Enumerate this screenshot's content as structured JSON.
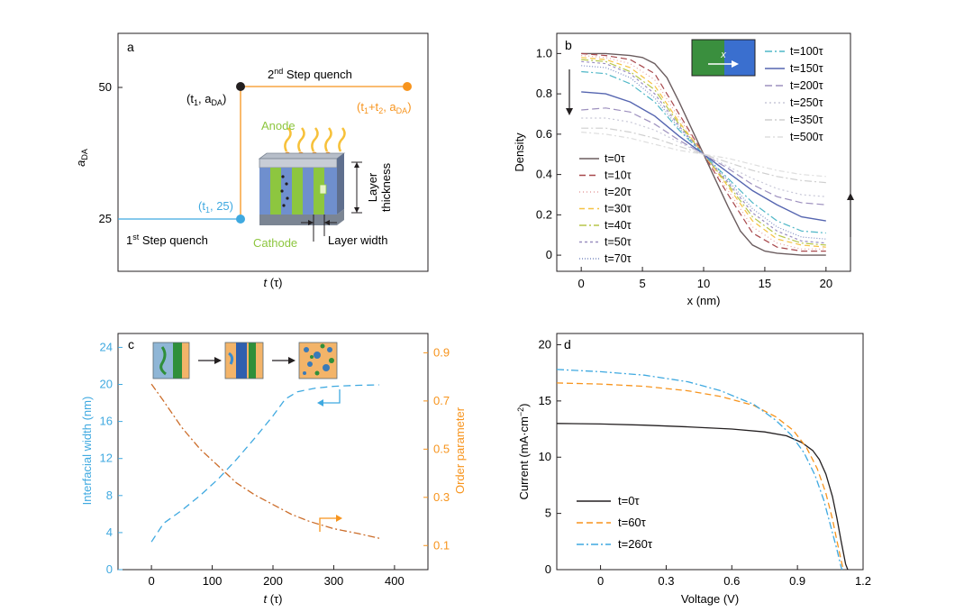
{
  "colors": {
    "blue": "#3fa9e0",
    "orange": "#f7941d",
    "olive": "#cc6d2a",
    "dark": "#231f20",
    "purple": "#5565b0",
    "red": "#a8484c",
    "anode_green": "#8dc63f",
    "layer_blue": "#6f8fce"
  },
  "panel_a": {
    "label": "a",
    "ylabel": "a",
    "ylabel_sub": "DA",
    "xlabel_main": "t",
    "xlabel_unit": "(τ)",
    "yticks": [
      "50",
      "25"
    ],
    "step1": "1",
    "step1_sup": "st",
    "step1_rest": " Step quench",
    "step2": "2",
    "step2_sup": "nd",
    "step2_rest": " Step quench",
    "pt1_label": "(t",
    "pt1_sub": "1",
    "pt1_rest": ", 25)",
    "pt2_a": "(t",
    "pt2_sub1": "1",
    "pt2_b": ", a",
    "pt2_sub2": "DA",
    "pt2_c": ")",
    "pt3_a": "(t",
    "pt3_sub1": "1",
    "pt3_b": "+t",
    "pt3_sub2": "2",
    "pt3_c": ", a",
    "pt3_sub3": "DA",
    "pt3_d": ")",
    "anode": "Anode",
    "cathode": "Cathode",
    "layer_thickness_1": "Layer",
    "layer_thickness_2": "thickness",
    "layer_width": "Layer width"
  },
  "chart_data": [
    {
      "panel": "b",
      "type": "line",
      "xlabel": "x (nm)",
      "ylabel": "Density",
      "xlim": [
        -2,
        22
      ],
      "ylim": [
        -0.08,
        1.1
      ],
      "xticks": [
        0,
        5,
        10,
        15,
        20
      ],
      "yticks": [
        0,
        0.2,
        0.4,
        0.6,
        0.8,
        1.0
      ],
      "inset_label": "x",
      "series": [
        {
          "name": "t=0τ",
          "color": "#6b5d5f",
          "dash": "",
          "values": [
            [
              0,
              1.0
            ],
            [
              2,
              1.0
            ],
            [
              4,
              0.99
            ],
            [
              5,
              0.98
            ],
            [
              6,
              0.95
            ],
            [
              7,
              0.88
            ],
            [
              8,
              0.76
            ],
            [
              9,
              0.63
            ],
            [
              10,
              0.5
            ],
            [
              11,
              0.37
            ],
            [
              12,
              0.24
            ],
            [
              13,
              0.12
            ],
            [
              14,
              0.05
            ],
            [
              15,
              0.02
            ],
            [
              16,
              0.01
            ],
            [
              18,
              0.0
            ],
            [
              20,
              0.0
            ]
          ]
        },
        {
          "name": "t=10τ",
          "color": "#a8484c",
          "dash": "7,4",
          "values": [
            [
              0,
              1.0
            ],
            [
              2,
              0.99
            ],
            [
              4,
              0.97
            ],
            [
              6,
              0.9
            ],
            [
              8,
              0.7
            ],
            [
              10,
              0.5
            ],
            [
              12,
              0.3
            ],
            [
              14,
              0.11
            ],
            [
              16,
              0.04
            ],
            [
              18,
              0.02
            ],
            [
              20,
              0.02
            ]
          ]
        },
        {
          "name": "t=20τ",
          "color": "#e6a0a0",
          "dash": "1,3",
          "values": [
            [
              0,
              0.99
            ],
            [
              2,
              0.98
            ],
            [
              4,
              0.95
            ],
            [
              6,
              0.87
            ],
            [
              8,
              0.68
            ],
            [
              10,
              0.5
            ],
            [
              12,
              0.32
            ],
            [
              14,
              0.14
            ],
            [
              16,
              0.06
            ],
            [
              18,
              0.03
            ],
            [
              20,
              0.03
            ]
          ]
        },
        {
          "name": "t=30τ",
          "color": "#f5c242",
          "dash": "6,4",
          "values": [
            [
              0,
              0.98
            ],
            [
              2,
              0.97
            ],
            [
              4,
              0.93
            ],
            [
              6,
              0.84
            ],
            [
              8,
              0.66
            ],
            [
              10,
              0.5
            ],
            [
              12,
              0.34
            ],
            [
              14,
              0.17
            ],
            [
              16,
              0.08
            ],
            [
              18,
              0.05
            ],
            [
              20,
              0.04
            ]
          ]
        },
        {
          "name": "t=40τ",
          "color": "#b7c64a",
          "dash": "8,3,2,3",
          "values": [
            [
              0,
              0.97
            ],
            [
              2,
              0.96
            ],
            [
              4,
              0.91
            ],
            [
              6,
              0.82
            ],
            [
              8,
              0.65
            ],
            [
              10,
              0.5
            ],
            [
              12,
              0.35
            ],
            [
              14,
              0.19
            ],
            [
              16,
              0.1
            ],
            [
              18,
              0.06
            ],
            [
              20,
              0.05
            ]
          ]
        },
        {
          "name": "t=50τ",
          "color": "#9a8fc0",
          "dash": "3,3",
          "values": [
            [
              0,
              0.96
            ],
            [
              2,
              0.95
            ],
            [
              4,
              0.9
            ],
            [
              6,
              0.8
            ],
            [
              8,
              0.64
            ],
            [
              10,
              0.5
            ],
            [
              12,
              0.36
            ],
            [
              14,
              0.21
            ],
            [
              16,
              0.12
            ],
            [
              18,
              0.07
            ],
            [
              20,
              0.06
            ]
          ]
        },
        {
          "name": "t=70τ",
          "color": "#7f8fc4",
          "dash": "1,2",
          "values": [
            [
              0,
              0.94
            ],
            [
              2,
              0.93
            ],
            [
              4,
              0.88
            ],
            [
              6,
              0.78
            ],
            [
              8,
              0.63
            ],
            [
              10,
              0.5
            ],
            [
              12,
              0.37
            ],
            [
              14,
              0.23
            ],
            [
              16,
              0.14
            ],
            [
              18,
              0.09
            ],
            [
              20,
              0.08
            ]
          ]
        },
        {
          "name": "t=100τ",
          "color": "#4fb7c7",
          "dash": "8,3,2,3",
          "values": [
            [
              0,
              0.91
            ],
            [
              2,
              0.9
            ],
            [
              4,
              0.85
            ],
            [
              6,
              0.76
            ],
            [
              8,
              0.62
            ],
            [
              10,
              0.5
            ],
            [
              12,
              0.38
            ],
            [
              14,
              0.26
            ],
            [
              16,
              0.17
            ],
            [
              18,
              0.12
            ],
            [
              20,
              0.11
            ]
          ]
        },
        {
          "name": "t=150τ",
          "color": "#5565b0",
          "dash": "",
          "values": [
            [
              0,
              0.81
            ],
            [
              2,
              0.8
            ],
            [
              4,
              0.76
            ],
            [
              6,
              0.69
            ],
            [
              8,
              0.59
            ],
            [
              10,
              0.5
            ],
            [
              12,
              0.41
            ],
            [
              14,
              0.32
            ],
            [
              16,
              0.25
            ],
            [
              18,
              0.19
            ],
            [
              20,
              0.17
            ]
          ]
        },
        {
          "name": "t=200τ",
          "color": "#9e91bf",
          "dash": "8,4",
          "values": [
            [
              0,
              0.72
            ],
            [
              2,
              0.73
            ],
            [
              4,
              0.71
            ],
            [
              6,
              0.65
            ],
            [
              8,
              0.57
            ],
            [
              10,
              0.5
            ],
            [
              12,
              0.43
            ],
            [
              14,
              0.35
            ],
            [
              16,
              0.29
            ],
            [
              18,
              0.26
            ],
            [
              20,
              0.25
            ]
          ]
        },
        {
          "name": "t=250τ",
          "color": "#c9c9d8",
          "dash": "2,3",
          "values": [
            [
              0,
              0.68
            ],
            [
              2,
              0.68
            ],
            [
              4,
              0.66
            ],
            [
              6,
              0.62
            ],
            [
              8,
              0.56
            ],
            [
              10,
              0.5
            ],
            [
              12,
              0.44
            ],
            [
              14,
              0.38
            ],
            [
              16,
              0.33
            ],
            [
              18,
              0.3
            ],
            [
              20,
              0.29
            ]
          ]
        },
        {
          "name": "t=350τ",
          "color": "#cfcfcf",
          "dash": "8,3,2,3",
          "values": [
            [
              0,
              0.63
            ],
            [
              2,
              0.63
            ],
            [
              4,
              0.61
            ],
            [
              6,
              0.58
            ],
            [
              8,
              0.54
            ],
            [
              10,
              0.5
            ],
            [
              12,
              0.46
            ],
            [
              14,
              0.42
            ],
            [
              16,
              0.39
            ],
            [
              18,
              0.37
            ],
            [
              20,
              0.36
            ]
          ]
        },
        {
          "name": "t=500τ",
          "color": "#dedede",
          "dash": "6,3,2,3",
          "values": [
            [
              0,
              0.61
            ],
            [
              2,
              0.6
            ],
            [
              4,
              0.58
            ],
            [
              6,
              0.55
            ],
            [
              8,
              0.52
            ],
            [
              10,
              0.5
            ],
            [
              12,
              0.48
            ],
            [
              14,
              0.45
            ],
            [
              16,
              0.42
            ],
            [
              18,
              0.4
            ],
            [
              20,
              0.39
            ]
          ]
        }
      ]
    },
    {
      "panel": "c",
      "type": "line",
      "xlabel_main": "t",
      "xlabel_unit": "(τ)",
      "ylabel": "Interfacial width (nm)",
      "y2label": "Order parameter",
      "xlim": [
        -55,
        455
      ],
      "ylim": [
        0,
        25.5
      ],
      "y2lim": [
        0.0,
        0.98
      ],
      "xticks": [
        0,
        100,
        200,
        300,
        400
      ],
      "yticks": [
        0,
        4,
        8,
        12,
        16,
        20,
        24
      ],
      "y2ticks": [
        0.1,
        0.3,
        0.5,
        0.7,
        0.9
      ],
      "series": [
        {
          "name": "Interfacial width",
          "axis": "left",
          "color": "#3fa9e0",
          "dash": "8,5",
          "values": [
            [
              0,
              3.0
            ],
            [
              20,
              5.0
            ],
            [
              50,
              6.4
            ],
            [
              80,
              8.0
            ],
            [
              110,
              9.8
            ],
            [
              140,
              11.9
            ],
            [
              170,
              14.2
            ],
            [
              200,
              16.6
            ],
            [
              220,
              18.4
            ],
            [
              240,
              19.2
            ],
            [
              270,
              19.6
            ],
            [
              300,
              19.8
            ],
            [
              340,
              19.9
            ],
            [
              375,
              19.95
            ]
          ]
        },
        {
          "name": "Order parameter",
          "axis": "right",
          "color": "#cc6d2a",
          "dash": "8,3,2,3",
          "values": [
            [
              0,
              0.77
            ],
            [
              20,
              0.7
            ],
            [
              50,
              0.59
            ],
            [
              80,
              0.5
            ],
            [
              110,
              0.43
            ],
            [
              140,
              0.36
            ],
            [
              170,
              0.31
            ],
            [
              200,
              0.27
            ],
            [
              230,
              0.23
            ],
            [
              260,
              0.2
            ],
            [
              300,
              0.17
            ],
            [
              340,
              0.15
            ],
            [
              375,
              0.13
            ]
          ]
        }
      ]
    },
    {
      "panel": "d",
      "type": "line",
      "xlabel": "Voltage (V)",
      "ylabel_main": "Current (mA·cm",
      "ylabel_sup": "−2",
      "ylabel_end": ")",
      "xlim": [
        -0.2,
        1.2
      ],
      "ylim": [
        0,
        21
      ],
      "xticks": [
        0,
        0.3,
        0.6,
        0.9,
        1.2
      ],
      "xtick_labels": [
        "0",
        "0.3",
        "0.6",
        "0.9",
        "1.2"
      ],
      "yticks": [
        0,
        5,
        10,
        15,
        20
      ],
      "series": [
        {
          "name": "t=0τ",
          "color": "#231f20",
          "dash": "",
          "values": [
            [
              -0.2,
              13.0
            ],
            [
              0.0,
              12.95
            ],
            [
              0.2,
              12.85
            ],
            [
              0.4,
              12.7
            ],
            [
              0.6,
              12.5
            ],
            [
              0.75,
              12.25
            ],
            [
              0.85,
              11.9
            ],
            [
              0.92,
              11.3
            ],
            [
              0.97,
              10.6
            ],
            [
              1.0,
              9.8
            ],
            [
              1.03,
              8.5
            ],
            [
              1.06,
              6.5
            ],
            [
              1.08,
              4.6
            ],
            [
              1.1,
              2.5
            ],
            [
              1.12,
              0.5
            ],
            [
              1.13,
              0.0
            ]
          ]
        },
        {
          "name": "t=60τ",
          "color": "#f7941d",
          "dash": "7,4",
          "values": [
            [
              -0.2,
              16.6
            ],
            [
              0.0,
              16.5
            ],
            [
              0.2,
              16.3
            ],
            [
              0.4,
              15.9
            ],
            [
              0.55,
              15.4
            ],
            [
              0.7,
              14.6
            ],
            [
              0.8,
              13.6
            ],
            [
              0.88,
              12.4
            ],
            [
              0.94,
              10.9
            ],
            [
              0.99,
              9.0
            ],
            [
              1.03,
              6.8
            ],
            [
              1.06,
              4.5
            ],
            [
              1.08,
              2.6
            ],
            [
              1.1,
              0.8
            ],
            [
              1.11,
              0.0
            ]
          ]
        },
        {
          "name": "t=260τ",
          "color": "#3fa9e0",
          "dash": "8,3,2,3",
          "values": [
            [
              -0.2,
              17.8
            ],
            [
              0.0,
              17.6
            ],
            [
              0.2,
              17.3
            ],
            [
              0.4,
              16.7
            ],
            [
              0.55,
              15.9
            ],
            [
              0.7,
              14.7
            ],
            [
              0.8,
              13.3
            ],
            [
              0.87,
              12.0
            ],
            [
              0.93,
              10.4
            ],
            [
              0.98,
              8.4
            ],
            [
              1.02,
              6.2
            ],
            [
              1.05,
              4.0
            ],
            [
              1.08,
              1.8
            ],
            [
              1.1,
              0.2
            ],
            [
              1.105,
              0.0
            ]
          ]
        }
      ]
    }
  ]
}
